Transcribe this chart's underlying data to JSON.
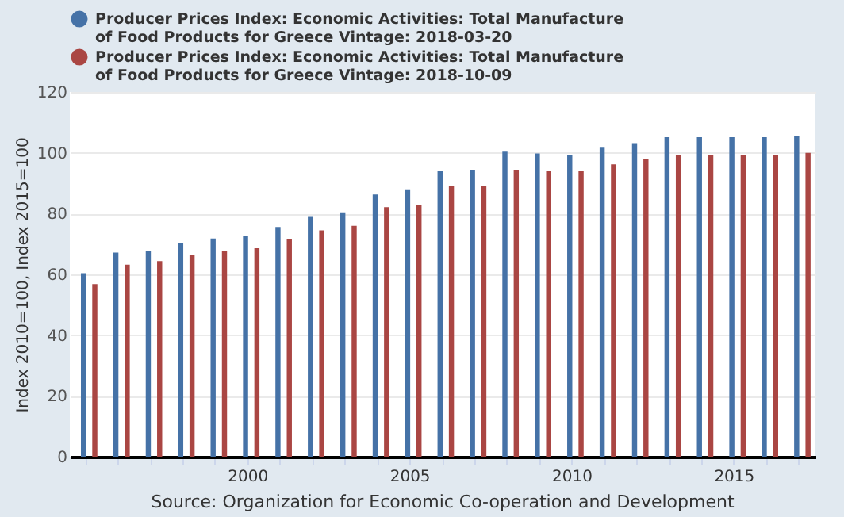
{
  "chart_data": {
    "type": "bar",
    "categories": [
      null,
      null,
      null,
      null,
      null,
      "2000",
      null,
      null,
      null,
      null,
      "2005",
      null,
      null,
      null,
      null,
      "2010",
      null,
      null,
      null,
      null,
      "2015",
      null,
      null
    ],
    "series": [
      {
        "name": "Producer Prices Index: Economic Activities: Total Manufacture of Food Products for Greece Vintage: 2018-03-20",
        "color": "#4572a7",
        "values": [
          60.4,
          67.2,
          67.8,
          70.3,
          71.8,
          72.6,
          75.6,
          78.9,
          80.4,
          86.3,
          88.0,
          93.9,
          94.3,
          100.4,
          99.8,
          99.4,
          101.7,
          103.2,
          105.1,
          105.1,
          105.1,
          105.1,
          105.5
        ]
      },
      {
        "name": "Producer Prices Index: Economic Activities: Total Manufacture of Food Products for Greece Vintage: 2018-10-09",
        "color": "#aa4643",
        "values": [
          56.8,
          63.2,
          64.4,
          66.3,
          67.8,
          68.6,
          71.6,
          74.5,
          76.0,
          82.1,
          82.9,
          89.1,
          89.1,
          94.3,
          93.9,
          93.9,
          96.2,
          97.9,
          99.4,
          99.4,
          99.4,
          99.4,
          100.0
        ]
      }
    ],
    "ylabel": "Index 2010=100, Index 2015=100",
    "ylim": [
      0,
      120
    ],
    "yticks": [
      0,
      20,
      40,
      60,
      80,
      100,
      120
    ],
    "grid": "y",
    "legend": "top",
    "annotations": [
      "Source: Organization for Economic Co-operation and Development"
    ]
  }
}
